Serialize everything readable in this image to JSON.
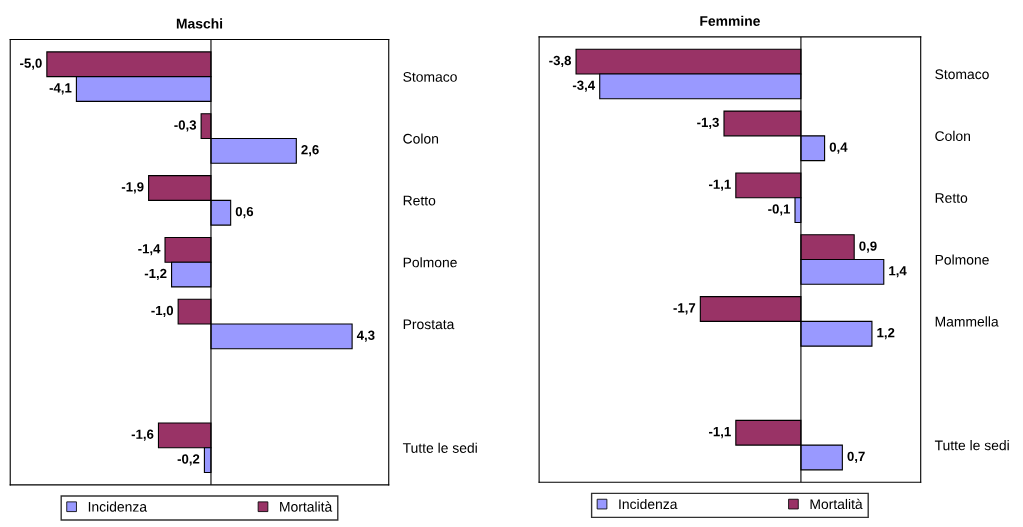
{
  "chart_data": [
    {
      "type": "bar",
      "orientation": "horizontal",
      "title": "Maschi",
      "categories": [
        "Stomaco",
        "Colon",
        "Retto",
        "Polmone",
        "Prostata",
        null,
        "Tutte le sedi"
      ],
      "series": [
        {
          "name": "Mortalità",
          "color": "#993366",
          "values": [
            -5.0,
            -0.3,
            -1.9,
            -1.4,
            -1.0,
            null,
            -1.6
          ],
          "value_labels": [
            "-5,0",
            "-0,3",
            "-1,9",
            "-1,4",
            "-1,0",
            null,
            "-1,6"
          ]
        },
        {
          "name": "Incidenza",
          "color": "#9999ff",
          "values": [
            -4.1,
            2.6,
            0.6,
            -1.2,
            4.3,
            null,
            -0.2
          ],
          "value_labels": [
            "-4,1",
            "2,6",
            "0,6",
            "-1,2",
            "4,3",
            null,
            "-0,2"
          ]
        }
      ],
      "legend": "bottom",
      "tick_labels": "y",
      "grid": false
    },
    {
      "type": "bar",
      "orientation": "horizontal",
      "title": "Femmine",
      "categories": [
        "Stomaco",
        "Colon",
        "Retto",
        "Polmone",
        "Mammella",
        null,
        "Tutte le sedi"
      ],
      "series": [
        {
          "name": "Mortalità",
          "color": "#993366",
          "values": [
            -3.8,
            -1.3,
            -1.1,
            0.9,
            -1.7,
            null,
            -1.1
          ],
          "value_labels": [
            "-3,8",
            "-1,3",
            "-1,1",
            "0,9",
            "-1,7",
            null,
            "-1,1"
          ]
        },
        {
          "name": "Incidenza",
          "color": "#9999ff",
          "values": [
            -3.4,
            0.4,
            -0.1,
            1.4,
            1.2,
            null,
            0.7
          ],
          "value_labels": [
            "-3,4",
            "0,4",
            "-0,1",
            "1,4",
            "1,2",
            null,
            "0,7"
          ]
        }
      ],
      "legend": "bottom",
      "tick_labels": "y",
      "grid": false
    }
  ]
}
